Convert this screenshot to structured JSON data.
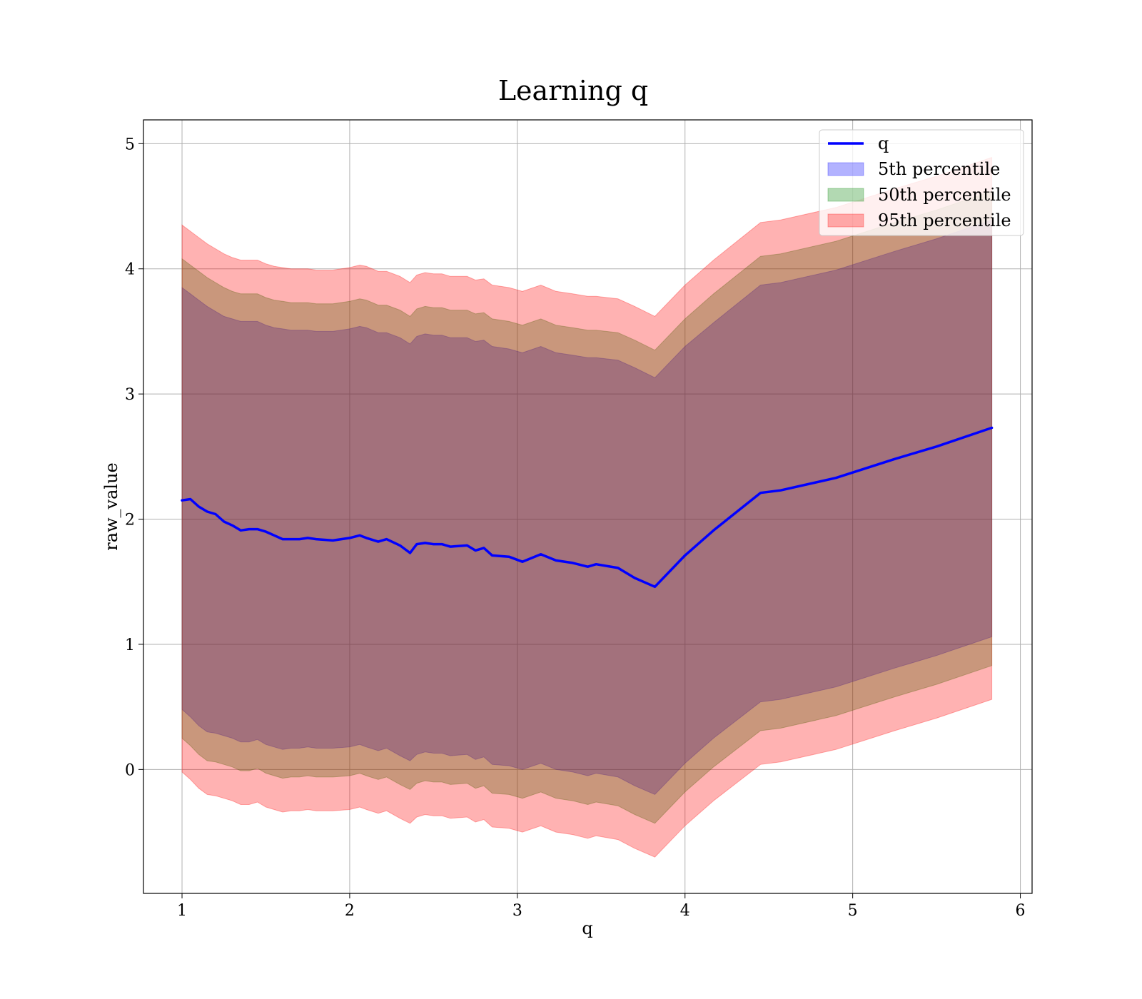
{
  "chart_data": {
    "type": "area",
    "title": "Learning q",
    "xlabel": "q",
    "ylabel": "raw_value",
    "xlim": [
      0.77,
      6.07
    ],
    "ylim": [
      -0.99,
      5.19
    ],
    "xticks": [
      "1",
      "2",
      "3",
      "4",
      "5",
      "6"
    ],
    "yticks": [
      "0",
      "1",
      "2",
      "3",
      "4",
      "5"
    ],
    "xtick_values": [
      1,
      2,
      3,
      4,
      5,
      6
    ],
    "ytick_values": [
      0,
      1,
      2,
      3,
      4,
      5
    ],
    "grid": true,
    "legend_position": "top-right",
    "x": [
      1.0,
      1.05,
      1.1,
      1.15,
      1.2,
      1.25,
      1.3,
      1.35,
      1.4,
      1.45,
      1.5,
      1.55,
      1.6,
      1.65,
      1.7,
      1.75,
      1.8,
      1.9,
      2.0,
      2.06,
      2.1,
      2.17,
      2.22,
      2.3,
      2.36,
      2.4,
      2.45,
      2.5,
      2.55,
      2.6,
      2.7,
      2.75,
      2.8,
      2.85,
      2.95,
      3.03,
      3.14,
      3.23,
      3.33,
      3.42,
      3.47,
      3.6,
      3.7,
      3.82,
      4.0,
      4.17,
      4.45,
      4.57,
      4.9,
      5.25,
      5.5,
      5.83
    ],
    "series": [
      {
        "name": "q",
        "color": "#0000ff",
        "values": [
          2.15,
          2.16,
          2.1,
          2.06,
          2.04,
          1.98,
          1.95,
          1.91,
          1.92,
          1.92,
          1.9,
          1.87,
          1.84,
          1.84,
          1.84,
          1.85,
          1.84,
          1.83,
          1.85,
          1.87,
          1.85,
          1.82,
          1.84,
          1.79,
          1.73,
          1.8,
          1.81,
          1.8,
          1.8,
          1.78,
          1.79,
          1.75,
          1.77,
          1.71,
          1.7,
          1.66,
          1.72,
          1.67,
          1.65,
          1.62,
          1.64,
          1.61,
          1.53,
          1.46,
          1.71,
          1.91,
          2.21,
          2.23,
          2.33,
          2.48,
          2.58,
          2.73
        ]
      }
    ],
    "bands": [
      {
        "name": "5th percentile",
        "color": "#0000ff",
        "opacity": 0.3,
        "upper": [
          3.85,
          3.8,
          3.75,
          3.7,
          3.66,
          3.62,
          3.6,
          3.58,
          3.58,
          3.58,
          3.55,
          3.53,
          3.52,
          3.51,
          3.51,
          3.51,
          3.5,
          3.5,
          3.52,
          3.54,
          3.53,
          3.49,
          3.49,
          3.45,
          3.4,
          3.46,
          3.48,
          3.47,
          3.47,
          3.45,
          3.45,
          3.42,
          3.43,
          3.38,
          3.36,
          3.33,
          3.38,
          3.33,
          3.31,
          3.29,
          3.29,
          3.27,
          3.21,
          3.13,
          3.38,
          3.57,
          3.87,
          3.89,
          3.99,
          4.14,
          4.24,
          4.39
        ],
        "lower": [
          0.48,
          0.42,
          0.35,
          0.3,
          0.29,
          0.27,
          0.25,
          0.22,
          0.22,
          0.24,
          0.2,
          0.18,
          0.16,
          0.17,
          0.17,
          0.18,
          0.17,
          0.17,
          0.18,
          0.2,
          0.18,
          0.15,
          0.17,
          0.11,
          0.07,
          0.12,
          0.14,
          0.13,
          0.13,
          0.11,
          0.12,
          0.08,
          0.1,
          0.04,
          0.03,
          0.0,
          0.05,
          0.0,
          -0.02,
          -0.05,
          -0.03,
          -0.06,
          -0.13,
          -0.2,
          0.05,
          0.25,
          0.54,
          0.56,
          0.66,
          0.81,
          0.91,
          1.06
        ]
      },
      {
        "name": "50th percentile",
        "color": "#008000",
        "opacity": 0.3,
        "upper": [
          4.08,
          4.03,
          3.98,
          3.93,
          3.89,
          3.85,
          3.82,
          3.8,
          3.8,
          3.8,
          3.77,
          3.75,
          3.74,
          3.73,
          3.73,
          3.73,
          3.72,
          3.72,
          3.74,
          3.76,
          3.75,
          3.71,
          3.71,
          3.67,
          3.62,
          3.68,
          3.7,
          3.69,
          3.69,
          3.67,
          3.67,
          3.64,
          3.65,
          3.6,
          3.58,
          3.55,
          3.6,
          3.55,
          3.53,
          3.51,
          3.51,
          3.49,
          3.43,
          3.35,
          3.6,
          3.8,
          4.1,
          4.12,
          4.22,
          4.37,
          4.47,
          4.62
        ],
        "lower": [
          0.25,
          0.19,
          0.12,
          0.07,
          0.06,
          0.04,
          0.02,
          -0.01,
          -0.01,
          0.01,
          -0.03,
          -0.05,
          -0.07,
          -0.06,
          -0.06,
          -0.05,
          -0.06,
          -0.06,
          -0.05,
          -0.03,
          -0.05,
          -0.08,
          -0.06,
          -0.12,
          -0.16,
          -0.11,
          -0.09,
          -0.1,
          -0.1,
          -0.12,
          -0.11,
          -0.15,
          -0.13,
          -0.19,
          -0.2,
          -0.23,
          -0.18,
          -0.23,
          -0.25,
          -0.28,
          -0.26,
          -0.29,
          -0.36,
          -0.43,
          -0.18,
          0.02,
          0.31,
          0.33,
          0.43,
          0.58,
          0.68,
          0.83
        ]
      },
      {
        "name": "95th percentile",
        "color": "#ff0000",
        "opacity": 0.3,
        "upper": [
          4.35,
          4.3,
          4.25,
          4.2,
          4.16,
          4.12,
          4.09,
          4.07,
          4.07,
          4.07,
          4.04,
          4.02,
          4.01,
          4.0,
          4.0,
          4.0,
          3.99,
          3.99,
          4.01,
          4.03,
          4.02,
          3.98,
          3.98,
          3.94,
          3.89,
          3.95,
          3.97,
          3.96,
          3.96,
          3.94,
          3.94,
          3.91,
          3.92,
          3.87,
          3.85,
          3.82,
          3.87,
          3.82,
          3.8,
          3.78,
          3.78,
          3.76,
          3.7,
          3.62,
          3.87,
          4.07,
          4.37,
          4.39,
          4.49,
          4.64,
          4.74,
          4.89
        ],
        "lower": [
          -0.02,
          -0.08,
          -0.15,
          -0.2,
          -0.21,
          -0.23,
          -0.25,
          -0.28,
          -0.28,
          -0.26,
          -0.3,
          -0.32,
          -0.34,
          -0.33,
          -0.33,
          -0.32,
          -0.33,
          -0.33,
          -0.32,
          -0.3,
          -0.32,
          -0.35,
          -0.33,
          -0.39,
          -0.43,
          -0.38,
          -0.36,
          -0.37,
          -0.37,
          -0.39,
          -0.38,
          -0.42,
          -0.4,
          -0.46,
          -0.47,
          -0.5,
          -0.45,
          -0.5,
          -0.52,
          -0.55,
          -0.53,
          -0.56,
          -0.63,
          -0.7,
          -0.45,
          -0.25,
          0.04,
          0.06,
          0.16,
          0.31,
          0.41,
          0.56
        ]
      }
    ]
  }
}
